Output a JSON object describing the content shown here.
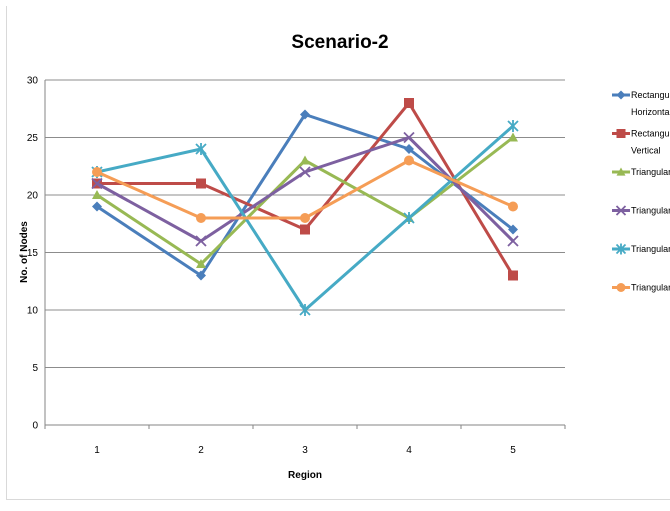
{
  "chart_data": {
    "type": "line",
    "title": "Scenario-2",
    "xlabel": "Region",
    "ylabel": "No. of Nodes",
    "categories": [
      "1",
      "2",
      "3",
      "4",
      "5"
    ],
    "ylim": [
      0,
      30
    ],
    "yticks": [
      "0",
      "5",
      "10",
      "15",
      "20",
      "25",
      "30"
    ],
    "grid": true,
    "legend_position": "right",
    "series": [
      {
        "name": "Rectangular Horizontal",
        "legend_lines": [
          "Rectangular",
          "Horizontal"
        ],
        "color": "#4a7ebb",
        "marker": "diamond",
        "values": [
          19,
          13,
          27,
          24,
          17
        ]
      },
      {
        "name": "Rectangular Vertical",
        "legend_lines": [
          "Rectangular",
          "Vertical"
        ],
        "color": "#be4b48",
        "marker": "square",
        "values": [
          21,
          21,
          17,
          28,
          13
        ]
      },
      {
        "name": "Triangular A",
        "legend_lines": [
          "Triangular A"
        ],
        "color": "#98b954",
        "marker": "triangle",
        "values": [
          20,
          14,
          23,
          18,
          25
        ]
      },
      {
        "name": "Triangular B",
        "legend_lines": [
          "Triangular B"
        ],
        "color": "#7d60a0",
        "marker": "x",
        "values": [
          21,
          16,
          22,
          25,
          16
        ]
      },
      {
        "name": "Triangular C",
        "legend_lines": [
          "Triangular C"
        ],
        "color": "#46aac5",
        "marker": "star",
        "values": [
          22,
          24,
          10,
          18,
          26
        ]
      },
      {
        "name": "Triangular D",
        "legend_lines": [
          "Triangular D"
        ],
        "color": "#f59d56",
        "marker": "circle",
        "values": [
          22,
          18,
          18,
          23,
          19
        ]
      }
    ]
  }
}
